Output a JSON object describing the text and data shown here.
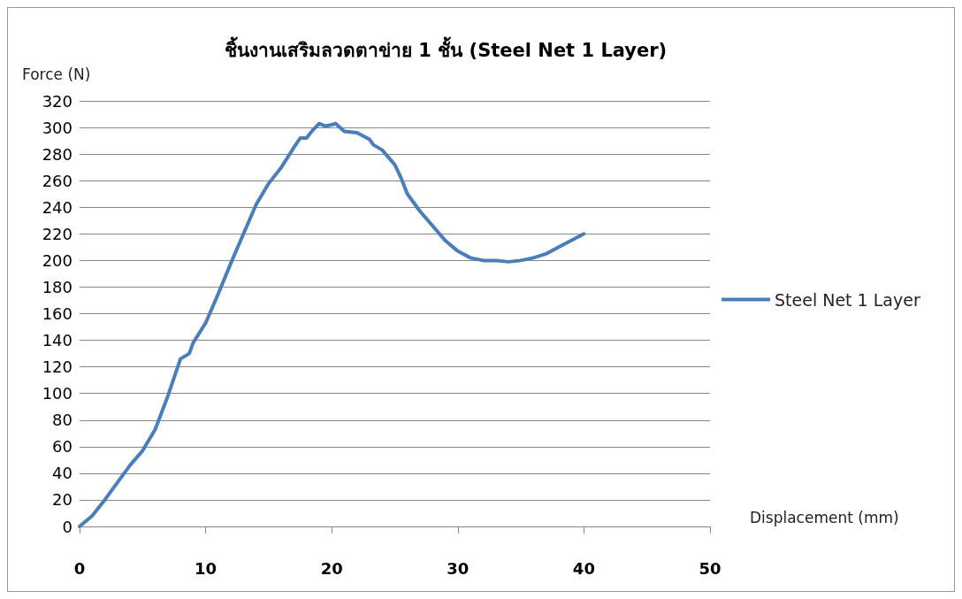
{
  "chart_data": {
    "type": "line",
    "title": "ชิ้นงานเสริมลวดตาข่าย 1 ชั้น (Steel Net 1 Layer)",
    "xlabel": "Displacement (mm)",
    "ylabel": "Force (N)",
    "xlim": [
      0,
      50
    ],
    "xticks": [
      0,
      10,
      20,
      30,
      40,
      50
    ],
    "ylim": [
      0,
      320
    ],
    "yticks": [
      0,
      20,
      40,
      60,
      80,
      100,
      120,
      140,
      160,
      180,
      200,
      220,
      240,
      260,
      280,
      300,
      320
    ],
    "grid": "y",
    "legend": "right",
    "marker": "none",
    "line_style": "solid",
    "series": [
      {
        "name": "Steel Net 1 Layer",
        "color": "#4a7ebb",
        "x": [
          0,
          1,
          2,
          3,
          4,
          5,
          6,
          7,
          8,
          8.7,
          9,
          10,
          11,
          12,
          13,
          14,
          15,
          16,
          17,
          17.5,
          18,
          18.5,
          19,
          19.5,
          20,
          20.3,
          21,
          22,
          23,
          23.3,
          24,
          25,
          25.5,
          26,
          27,
          28,
          29,
          30,
          31,
          32,
          33,
          34,
          35,
          36,
          37,
          38,
          39,
          40
        ],
        "values": [
          0,
          8,
          20,
          33,
          46,
          57,
          73,
          98,
          126,
          130,
          138,
          153,
          175,
          198,
          220,
          242,
          258,
          270,
          285,
          292,
          292,
          298,
          303,
          301,
          302,
          303,
          297,
          296,
          291,
          287,
          283,
          272,
          262,
          250,
          237,
          226,
          215,
          207,
          202,
          200,
          200,
          199,
          200,
          202,
          205,
          210,
          215,
          220
        ]
      }
    ]
  }
}
